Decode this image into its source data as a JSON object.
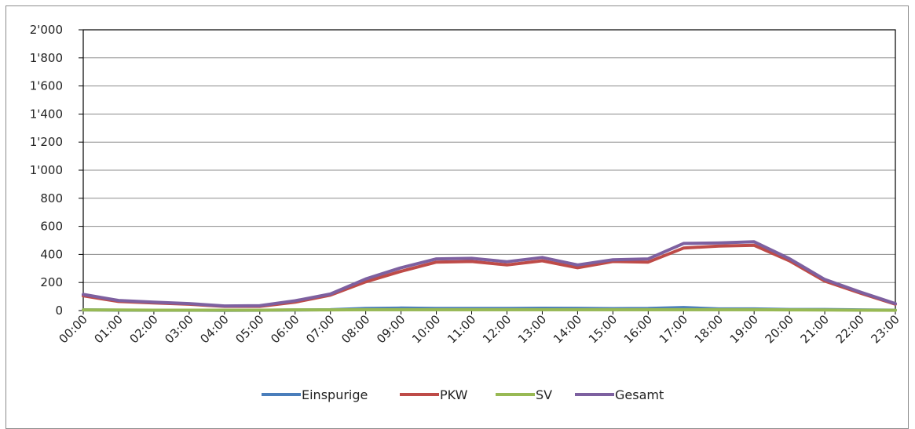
{
  "chart_data": {
    "type": "line",
    "title": "",
    "xlabel": "",
    "ylabel": "",
    "ylim": [
      0,
      2000
    ],
    "yticks": [
      0,
      200,
      400,
      600,
      800,
      1000,
      1200,
      1400,
      1600,
      1800,
      2000
    ],
    "ytick_labels": [
      "0",
      "200",
      "400",
      "600",
      "800",
      "1'000",
      "1'200",
      "1'400",
      "1'600",
      "1'800",
      "2'000"
    ],
    "grid": true,
    "legend_position": "bottom",
    "categories": [
      "00:00",
      "01:00",
      "02:00",
      "03:00",
      "04:00",
      "05:00",
      "06:00",
      "07:00",
      "08:00",
      "09:00",
      "10:00",
      "11:00",
      "12:00",
      "13:00",
      "14:00",
      "15:00",
      "16:00",
      "17:00",
      "18:00",
      "19:00",
      "20:00",
      "21:00",
      "22:00",
      "23:00"
    ],
    "series": [
      {
        "name": "Einspurige",
        "color": "#4a7ebb",
        "values": [
          5,
          3,
          2,
          2,
          1,
          2,
          4,
          6,
          15,
          18,
          15,
          15,
          15,
          17,
          16,
          14,
          15,
          22,
          12,
          12,
          8,
          8,
          5,
          3
        ]
      },
      {
        "name": "PKW",
        "color": "#be4b48",
        "values": [
          105,
          65,
          55,
          45,
          30,
          30,
          60,
          110,
          205,
          280,
          345,
          350,
          325,
          355,
          305,
          350,
          345,
          445,
          460,
          465,
          355,
          210,
          125,
          45
        ]
      },
      {
        "name": "SV",
        "color": "#98b954",
        "values": [
          5,
          4,
          3,
          3,
          3,
          3,
          5,
          5,
          6,
          6,
          6,
          6,
          6,
          6,
          6,
          6,
          6,
          6,
          6,
          6,
          5,
          4,
          3,
          2
        ]
      },
      {
        "name": "Gesamt",
        "color": "#7d60a0",
        "values": [
          115,
          72,
          60,
          50,
          33,
          35,
          70,
          118,
          225,
          305,
          368,
          372,
          348,
          378,
          325,
          362,
          368,
          478,
          482,
          490,
          370,
          222,
          133,
          50
        ]
      }
    ]
  }
}
